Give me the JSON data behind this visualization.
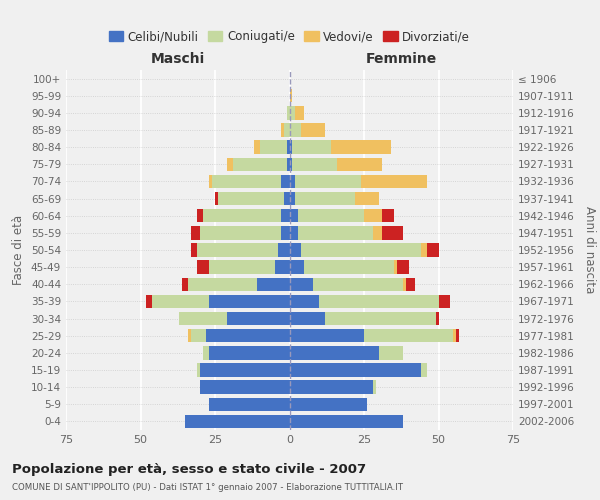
{
  "age_groups": [
    "0-4",
    "5-9",
    "10-14",
    "15-19",
    "20-24",
    "25-29",
    "30-34",
    "35-39",
    "40-44",
    "45-49",
    "50-54",
    "55-59",
    "60-64",
    "65-69",
    "70-74",
    "75-79",
    "80-84",
    "85-89",
    "90-94",
    "95-99",
    "100+"
  ],
  "birth_years": [
    "2002-2006",
    "1997-2001",
    "1992-1996",
    "1987-1991",
    "1982-1986",
    "1977-1981",
    "1972-1976",
    "1967-1971",
    "1962-1966",
    "1957-1961",
    "1952-1956",
    "1947-1951",
    "1942-1946",
    "1937-1941",
    "1932-1936",
    "1927-1931",
    "1922-1926",
    "1917-1921",
    "1912-1916",
    "1907-1911",
    "≤ 1906"
  ],
  "males": {
    "celibi": [
      35,
      27,
      30,
      30,
      27,
      28,
      21,
      27,
      11,
      5,
      4,
      3,
      3,
      2,
      3,
      1,
      1,
      0,
      0,
      0,
      0
    ],
    "coniugati": [
      0,
      0,
      0,
      1,
      2,
      5,
      16,
      19,
      23,
      22,
      27,
      27,
      26,
      22,
      23,
      18,
      9,
      2,
      1,
      0,
      0
    ],
    "vedovi": [
      0,
      0,
      0,
      0,
      0,
      1,
      0,
      0,
      0,
      0,
      0,
      0,
      0,
      0,
      1,
      2,
      2,
      1,
      0,
      0,
      0
    ],
    "divorziati": [
      0,
      0,
      0,
      0,
      0,
      0,
      0,
      2,
      2,
      4,
      2,
      3,
      2,
      1,
      0,
      0,
      0,
      0,
      0,
      0,
      0
    ]
  },
  "females": {
    "nubili": [
      38,
      26,
      28,
      44,
      30,
      25,
      12,
      10,
      8,
      5,
      4,
      3,
      3,
      2,
      2,
      1,
      1,
      0,
      0,
      0,
      0
    ],
    "coniugate": [
      0,
      0,
      1,
      2,
      8,
      30,
      37,
      40,
      30,
      30,
      40,
      25,
      22,
      20,
      22,
      15,
      13,
      4,
      2,
      0,
      0
    ],
    "vedove": [
      0,
      0,
      0,
      0,
      0,
      1,
      0,
      0,
      1,
      1,
      2,
      3,
      6,
      8,
      22,
      15,
      20,
      8,
      3,
      1,
      0
    ],
    "divorziate": [
      0,
      0,
      0,
      0,
      0,
      1,
      1,
      4,
      3,
      4,
      4,
      7,
      4,
      0,
      0,
      0,
      0,
      0,
      0,
      0,
      0
    ]
  },
  "colors": {
    "celibi": "#4472c4",
    "coniugati": "#c5d9a0",
    "vedovi": "#f0c060",
    "divorziati": "#cc2222"
  },
  "xlim": 75,
  "title": "Popolazione per età, sesso e stato civile - 2007",
  "subtitle": "COMUNE DI SANT'IPPOLITO (PU) - Dati ISTAT 1° gennaio 2007 - Elaborazione TUTTITALIA.IT",
  "ylabel_left": "Fasce di età",
  "ylabel_right": "Anni di nascita",
  "xlabel_left": "Maschi",
  "xlabel_right": "Femmine",
  "legend_labels": [
    "Celibi/Nubili",
    "Coniugati/e",
    "Vedovi/e",
    "Divorziati/e"
  ],
  "background_color": "#f0f0f0"
}
